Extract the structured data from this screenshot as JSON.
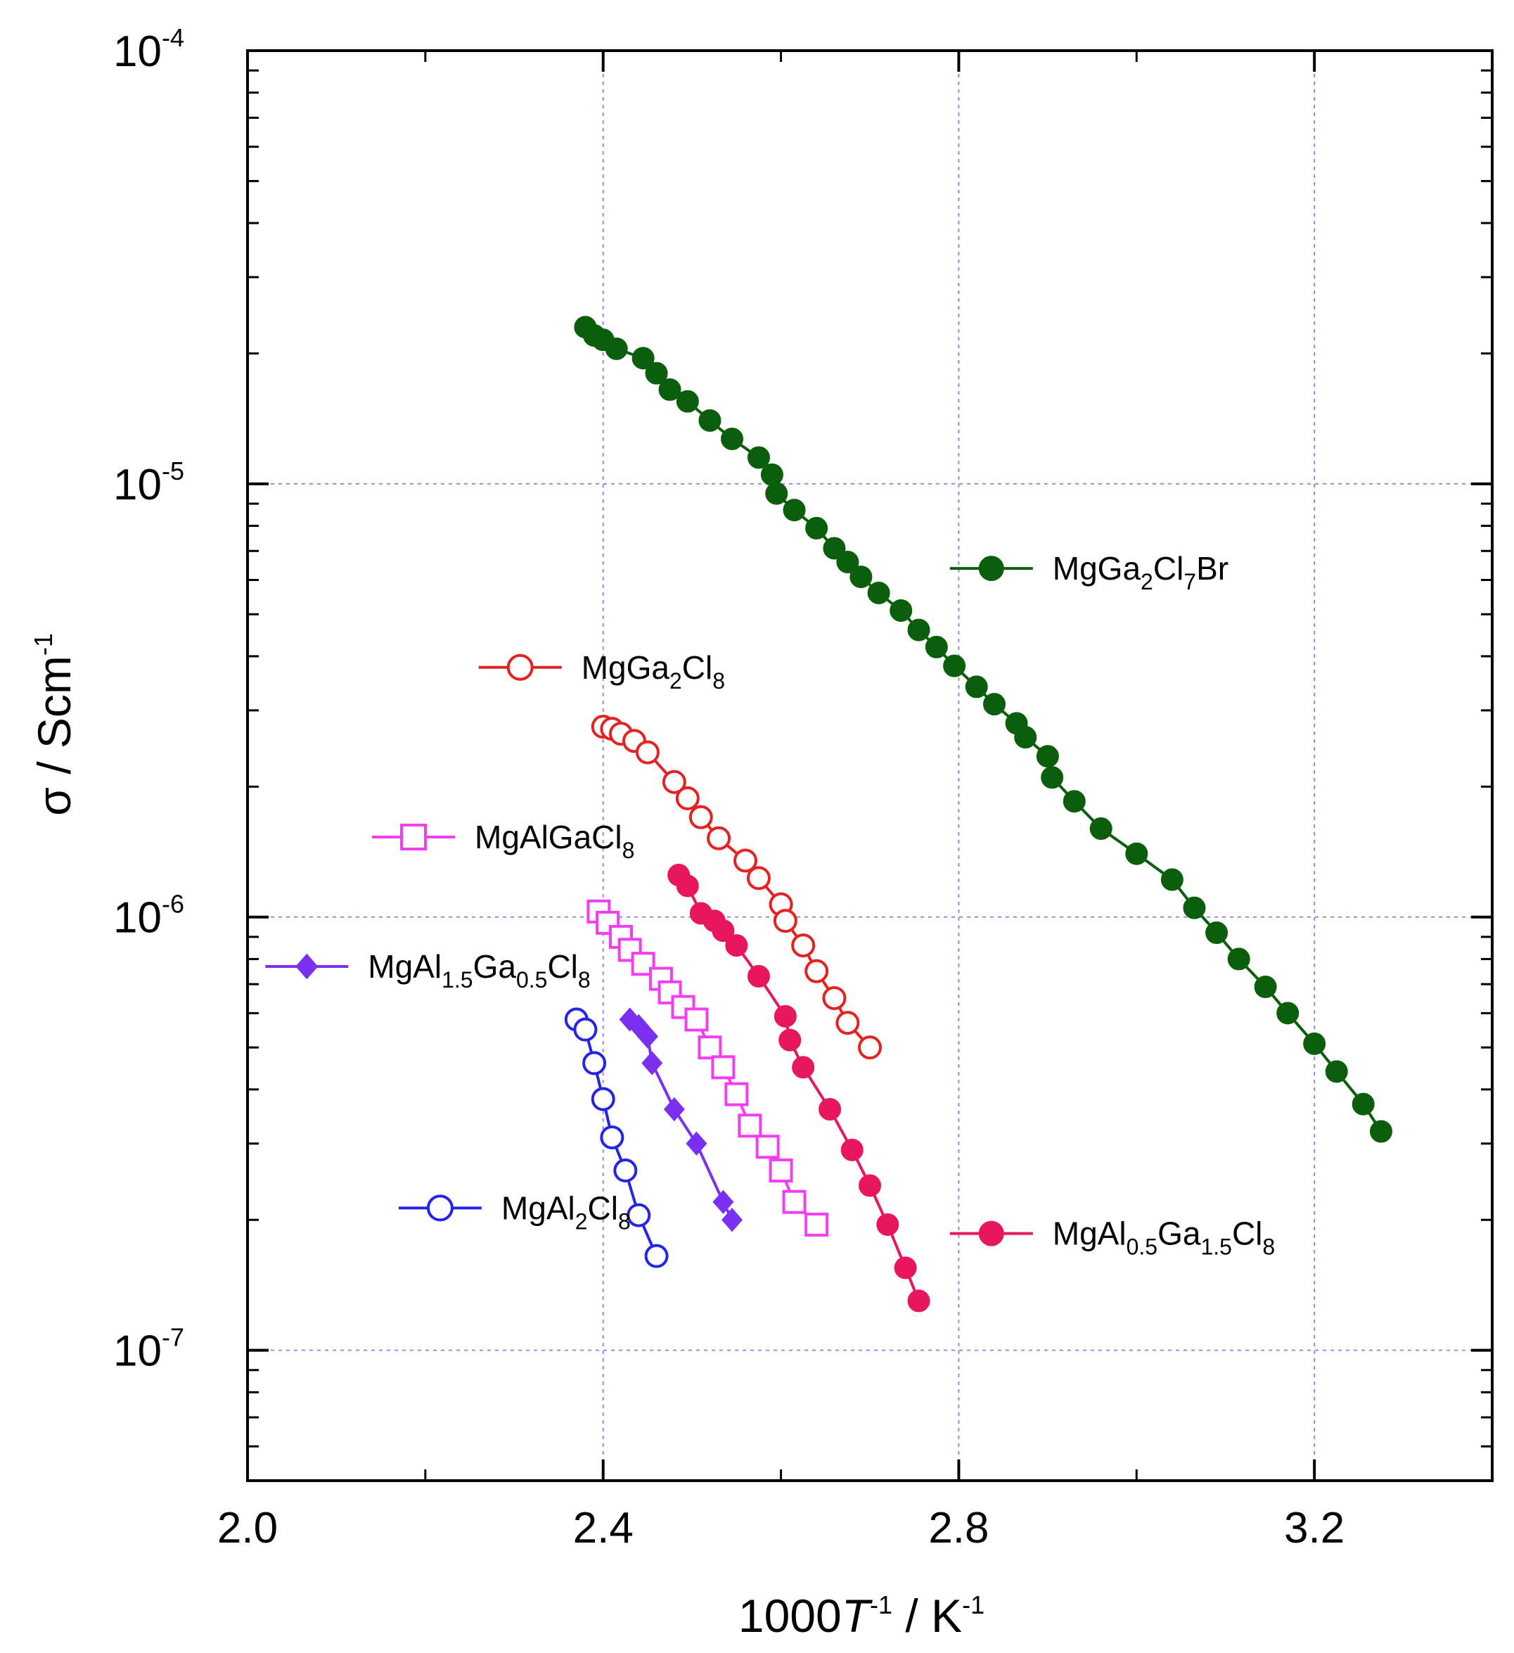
{
  "chart_data": {
    "type": "scatter",
    "title": "",
    "xlabel": {
      "prefix": "1000",
      "var": "T",
      "var_exp": "-1",
      "unit": " / K",
      "unit_exp": "-1"
    },
    "ylabel": {
      "text": "σ / Scm",
      "exp": "-1"
    },
    "xlim": [
      2.0,
      3.4
    ],
    "ylim": [
      5e-08,
      0.0001
    ],
    "yscale": "log",
    "grid": true,
    "x_ticks": [
      "2.0",
      "2.4",
      "2.8",
      "3.2"
    ],
    "x_tick_values": [
      2.0,
      2.4,
      2.8,
      3.2
    ],
    "y_ticks": [
      {
        "value": 0.0001,
        "base": "10",
        "exp": "-4"
      },
      {
        "value": 1e-05,
        "base": "10",
        "exp": "-5"
      },
      {
        "value": 1e-06,
        "base": "10",
        "exp": "-6"
      },
      {
        "value": 1e-07,
        "base": "10",
        "exp": "-7"
      }
    ],
    "series": [
      {
        "id": "mgga2cl7br",
        "label_parts": [
          [
            "MgGa",
            ""
          ],
          [
            "2",
            "sub"
          ],
          [
            "Cl",
            ""
          ],
          [
            "7",
            "sub"
          ],
          [
            "Br",
            ""
          ]
        ],
        "color": "#0b5e0b",
        "marker": "circle",
        "filled": true,
        "legend_x": 2.79,
        "legend_y": 6.38e-06,
        "x": [
          2.38,
          2.39,
          2.4,
          2.415,
          2.445,
          2.46,
          2.475,
          2.495,
          2.52,
          2.545,
          2.575,
          2.59,
          2.595,
          2.615,
          2.64,
          2.66,
          2.675,
          2.69,
          2.71,
          2.735,
          2.755,
          2.775,
          2.795,
          2.82,
          2.84,
          2.865,
          2.875,
          2.9,
          2.905,
          2.93,
          2.96,
          3.0,
          3.04,
          3.065,
          3.09,
          3.115,
          3.145,
          3.17,
          3.2,
          3.225,
          3.255,
          3.275
        ],
        "y": [
          2.3e-05,
          2.2e-05,
          2.15e-05,
          2.05e-05,
          1.95e-05,
          1.8e-05,
          1.65e-05,
          1.55e-05,
          1.4e-05,
          1.27e-05,
          1.15e-05,
          1.05e-05,
          9.5e-06,
          8.7e-06,
          7.9e-06,
          7.1e-06,
          6.6e-06,
          6.1e-06,
          5.6e-06,
          5.1e-06,
          4.6e-06,
          4.2e-06,
          3.8e-06,
          3.4e-06,
          3.1e-06,
          2.8e-06,
          2.6e-06,
          2.35e-06,
          2.1e-06,
          1.85e-06,
          1.6e-06,
          1.4e-06,
          1.22e-06,
          1.05e-06,
          9.2e-07,
          8e-07,
          6.9e-07,
          6e-07,
          5.1e-07,
          4.4e-07,
          3.7e-07,
          3.2e-07
        ]
      },
      {
        "id": "mgga2cl8",
        "label_parts": [
          [
            "MgGa",
            ""
          ],
          [
            "2",
            "sub"
          ],
          [
            "Cl",
            ""
          ],
          [
            "8",
            "sub"
          ]
        ],
        "color": "#e52222",
        "marker": "circle",
        "filled": false,
        "legend_x": 2.26,
        "legend_y": 3.77e-06,
        "x": [
          2.4,
          2.41,
          2.42,
          2.435,
          2.45,
          2.48,
          2.495,
          2.51,
          2.53,
          2.56,
          2.575,
          2.6,
          2.605,
          2.625,
          2.64,
          2.66,
          2.675,
          2.7
        ],
        "y": [
          2.75e-06,
          2.72e-06,
          2.65e-06,
          2.55e-06,
          2.4e-06,
          2.05e-06,
          1.88e-06,
          1.7e-06,
          1.52e-06,
          1.35e-06,
          1.23e-06,
          1.07e-06,
          9.8e-07,
          8.6e-07,
          7.5e-07,
          6.5e-07,
          5.7e-07,
          5e-07
        ]
      },
      {
        "id": "mgalgacl8",
        "label_parts": [
          [
            "MgAlGaCl",
            ""
          ],
          [
            "8",
            "sub"
          ]
        ],
        "color": "#f23df2",
        "marker": "square",
        "filled": false,
        "legend_x": 2.14,
        "legend_y": 1.53e-06,
        "x": [
          2.395,
          2.405,
          2.42,
          2.43,
          2.445,
          2.465,
          2.475,
          2.49,
          2.505,
          2.52,
          2.535,
          2.55,
          2.565,
          2.585,
          2.6,
          2.615,
          2.64
        ],
        "y": [
          1.03e-06,
          9.7e-07,
          9e-07,
          8.4e-07,
          7.8e-07,
          7.2e-07,
          6.7e-07,
          6.2e-07,
          5.8e-07,
          5e-07,
          4.5e-07,
          3.9e-07,
          3.3e-07,
          2.95e-07,
          2.6e-07,
          2.2e-07,
          1.95e-07
        ]
      },
      {
        "id": "mgal05ga15cl8",
        "label_parts": [
          [
            "MgAl",
            ""
          ],
          [
            "0.5",
            "sub"
          ],
          [
            "Ga",
            ""
          ],
          [
            "1.5",
            "sub"
          ],
          [
            "Cl",
            ""
          ],
          [
            "8",
            "sub"
          ]
        ],
        "color": "#e8175d",
        "marker": "circle",
        "filled": true,
        "legend_x": 2.79,
        "legend_y": 1.86e-07,
        "x": [
          2.485,
          2.495,
          2.51,
          2.525,
          2.535,
          2.55,
          2.575,
          2.605,
          2.61,
          2.625,
          2.655,
          2.68,
          2.7,
          2.72,
          2.74,
          2.755
        ],
        "y": [
          1.25e-06,
          1.18e-06,
          1.02e-06,
          9.8e-07,
          9.3e-07,
          8.6e-07,
          7.3e-07,
          5.9e-07,
          5.2e-07,
          4.5e-07,
          3.6e-07,
          2.9e-07,
          2.4e-07,
          1.95e-07,
          1.55e-07,
          1.3e-07
        ]
      },
      {
        "id": "mgal15ga05cl8",
        "label_parts": [
          [
            "MgAl",
            ""
          ],
          [
            "1.5",
            "sub"
          ],
          [
            "Ga",
            ""
          ],
          [
            "0.5",
            "sub"
          ],
          [
            "Cl",
            ""
          ],
          [
            "8",
            "sub"
          ]
        ],
        "color": "#7b2ff0",
        "marker": "diamond",
        "filled": true,
        "legend_x": 2.02,
        "legend_y": 7.69e-07,
        "x": [
          2.43,
          2.44,
          2.45,
          2.455,
          2.48,
          2.505,
          2.535,
          2.545
        ],
        "y": [
          5.8e-07,
          5.6e-07,
          5.3e-07,
          4.6e-07,
          3.6e-07,
          3e-07,
          2.2e-07,
          2e-07
        ]
      },
      {
        "id": "mgal2cl8",
        "label_parts": [
          [
            "MgAl",
            ""
          ],
          [
            "2",
            "sub"
          ],
          [
            "Cl",
            ""
          ],
          [
            "8",
            "sub"
          ]
        ],
        "color": "#2424e6",
        "marker": "circle",
        "filled": false,
        "legend_x": 2.17,
        "legend_y": 2.13e-07,
        "x": [
          2.37,
          2.38,
          2.39,
          2.4,
          2.41,
          2.425,
          2.44,
          2.46
        ],
        "y": [
          5.8e-07,
          5.5e-07,
          4.6e-07,
          3.8e-07,
          3.1e-07,
          2.6e-07,
          2.05e-07,
          1.65e-07
        ]
      }
    ]
  }
}
